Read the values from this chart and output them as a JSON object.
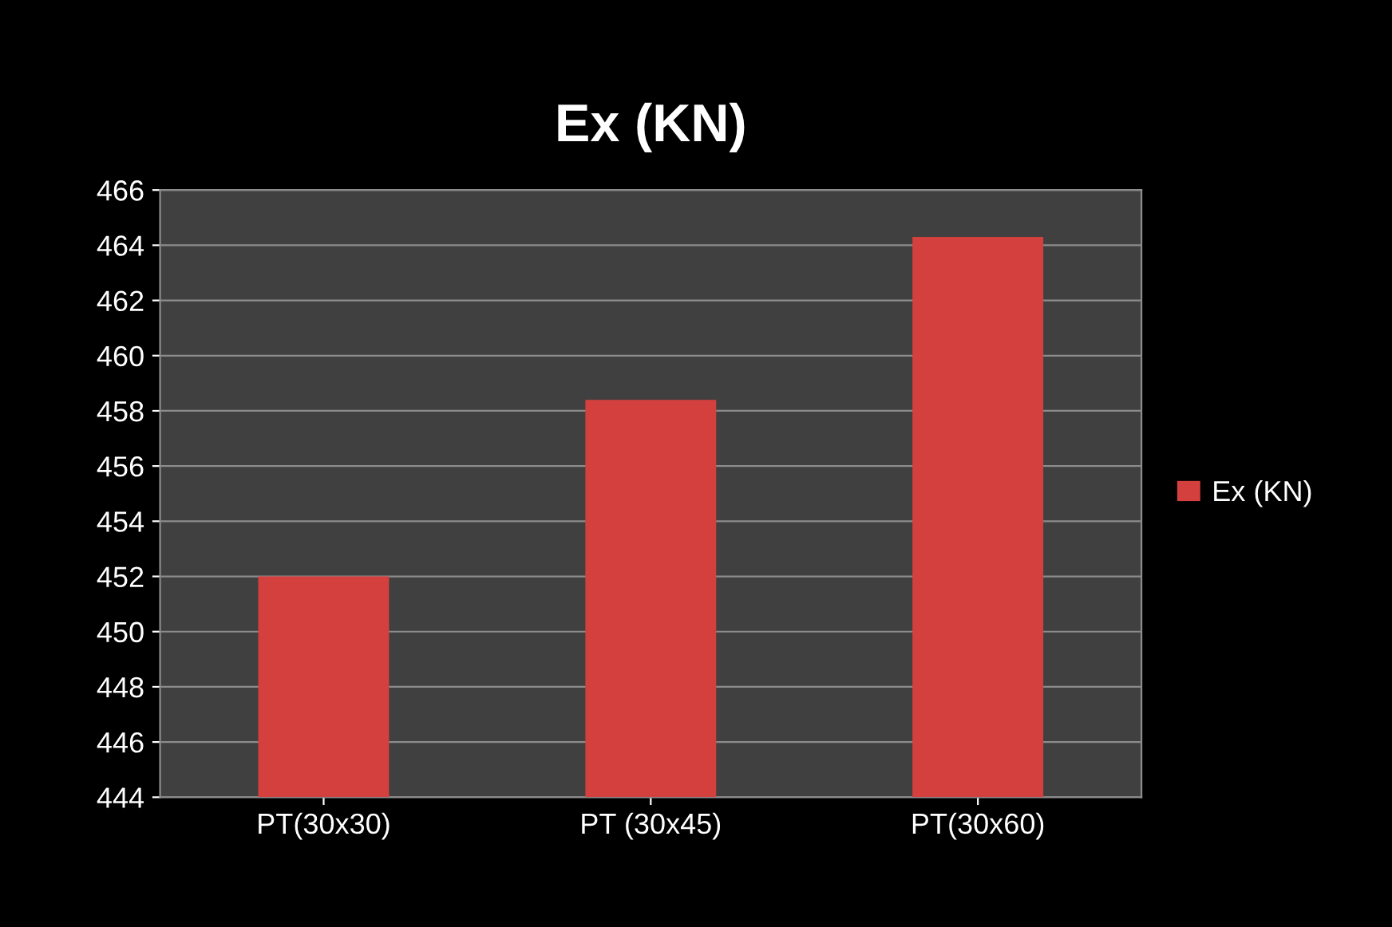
{
  "chart_data": {
    "type": "bar",
    "title": "Ex (KN)",
    "categories": [
      "PT(30x30)",
      "PT (30x45)",
      "PT(30x60)"
    ],
    "series": [
      {
        "name": "Ex (KN)",
        "color": "#d4403e",
        "values": [
          452,
          458.4,
          464.3
        ]
      }
    ],
    "ylim": [
      444,
      466
    ],
    "yticks": [
      444,
      446,
      448,
      450,
      452,
      454,
      456,
      458,
      460,
      462,
      464,
      466
    ],
    "grid": "y",
    "legend": "right"
  }
}
